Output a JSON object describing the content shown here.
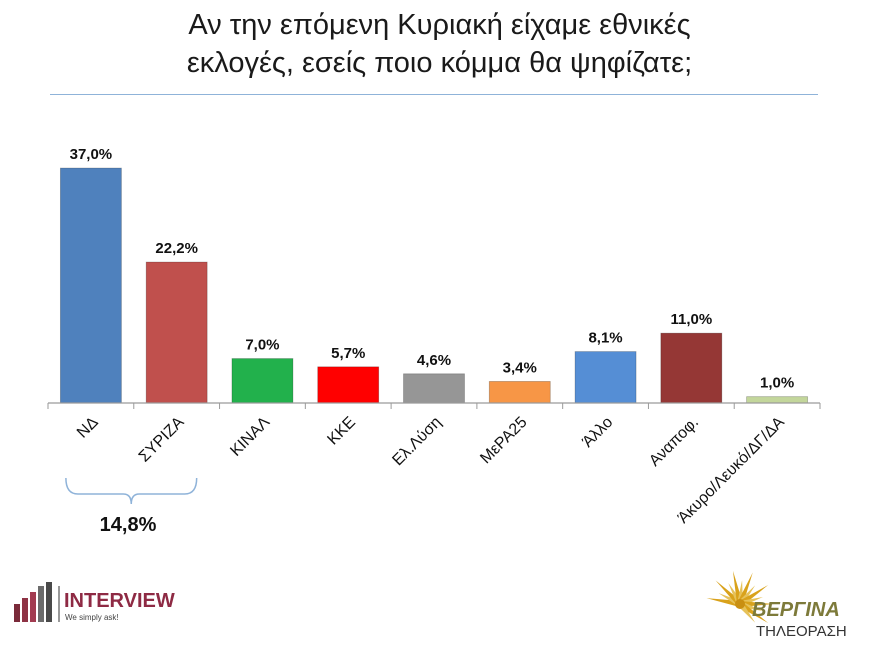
{
  "chart_data": {
    "type": "bar",
    "title_lines": [
      "Αν την επόμενη Κυριακή είχαμε εθνικές",
      "εκλογές, εσείς ποιο κόμμα θα ψηφίζατε;"
    ],
    "categories": [
      "ΝΔ",
      "ΣΥΡΙΖΑ",
      "ΚΙΝΑΛ",
      "ΚΚΕ",
      "Ελ.Λύση",
      "ΜεΡΑ25",
      "Άλλο",
      "Αναποφ.",
      "Άκυρο/Λευκό/ΔΓ/ΔΑ"
    ],
    "values": [
      37.0,
      22.2,
      7.0,
      5.7,
      4.6,
      3.4,
      8.1,
      11.0,
      1.0
    ],
    "value_labels": [
      "37,0%",
      "22,2%",
      "7,0%",
      "5,7%",
      "4,6%",
      "3,4%",
      "8,1%",
      "11,0%",
      "1,0%"
    ],
    "colors": [
      "#4f81bd",
      "#c0504d",
      "#22b14c",
      "#ff0000",
      "#969696",
      "#f79646",
      "#558ed5",
      "#953735",
      "#c3d69b"
    ],
    "ylim": [
      0,
      40
    ],
    "grid": false,
    "annotation": {
      "label": "14,8%",
      "between": [
        "ΝΔ",
        "ΣΥΡΙΖΑ"
      ]
    }
  },
  "logos": {
    "interview": {
      "name": "INTERVIEW",
      "tagline": "We simply ask!"
    },
    "vergina": {
      "name": "ΒΕΡΓΙΝΑ",
      "sub": "ΤΗΛΕΟΡΑΣΗ"
    }
  }
}
